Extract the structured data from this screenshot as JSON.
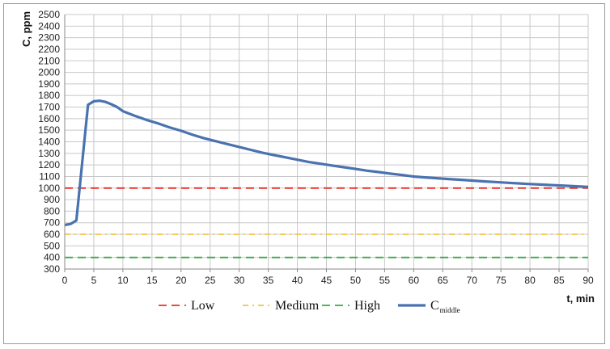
{
  "chart_data": {
    "type": "line",
    "title": "",
    "xlabel": "t, min",
    "ylabel": "C, ppm",
    "xlim": [
      0,
      90
    ],
    "ylim": [
      300,
      2500
    ],
    "xticks": [
      0,
      5,
      10,
      15,
      20,
      25,
      30,
      35,
      40,
      45,
      50,
      55,
      60,
      65,
      70,
      75,
      80,
      85,
      90
    ],
    "yticks": [
      300,
      400,
      500,
      600,
      700,
      800,
      900,
      1000,
      1100,
      1200,
      1300,
      1400,
      1500,
      1600,
      1700,
      1800,
      1900,
      2000,
      2100,
      2200,
      2300,
      2400,
      2500
    ],
    "grid": true,
    "legend_position": "bottom",
    "series": [
      {
        "name": "Low",
        "style": "dashed",
        "color": "#e8302a",
        "x": [
          0,
          90
        ],
        "y": [
          1000,
          1000
        ]
      },
      {
        "name": "Medium",
        "style": "dash-dot",
        "color": "#f5c342",
        "x": [
          0,
          90
        ],
        "y": [
          600,
          600
        ]
      },
      {
        "name": "High",
        "style": "dashed",
        "color": "#3aaa48",
        "x": [
          0,
          90
        ],
        "y": [
          400,
          400
        ]
      },
      {
        "name": "C",
        "name_subscript": "middle",
        "style": "solid",
        "color": "#4a72b0",
        "x": [
          0,
          1,
          2,
          3,
          4,
          5,
          6,
          7,
          8,
          9,
          10,
          12,
          14,
          16,
          18,
          20,
          22,
          24,
          26,
          28,
          30,
          32,
          34,
          36,
          38,
          40,
          42,
          44,
          46,
          48,
          50,
          52,
          54,
          56,
          58,
          60,
          62,
          64,
          66,
          68,
          70,
          72,
          74,
          76,
          78,
          80,
          82,
          84,
          86,
          88,
          90
        ],
        "y": [
          680,
          690,
          720,
          1220,
          1720,
          1750,
          1755,
          1745,
          1725,
          1700,
          1665,
          1625,
          1590,
          1560,
          1525,
          1495,
          1460,
          1430,
          1405,
          1380,
          1355,
          1330,
          1305,
          1285,
          1265,
          1245,
          1225,
          1210,
          1195,
          1180,
          1165,
          1150,
          1138,
          1125,
          1113,
          1100,
          1092,
          1085,
          1078,
          1072,
          1065,
          1058,
          1052,
          1046,
          1040,
          1035,
          1030,
          1025,
          1020,
          1015,
          1010
        ]
      }
    ]
  }
}
